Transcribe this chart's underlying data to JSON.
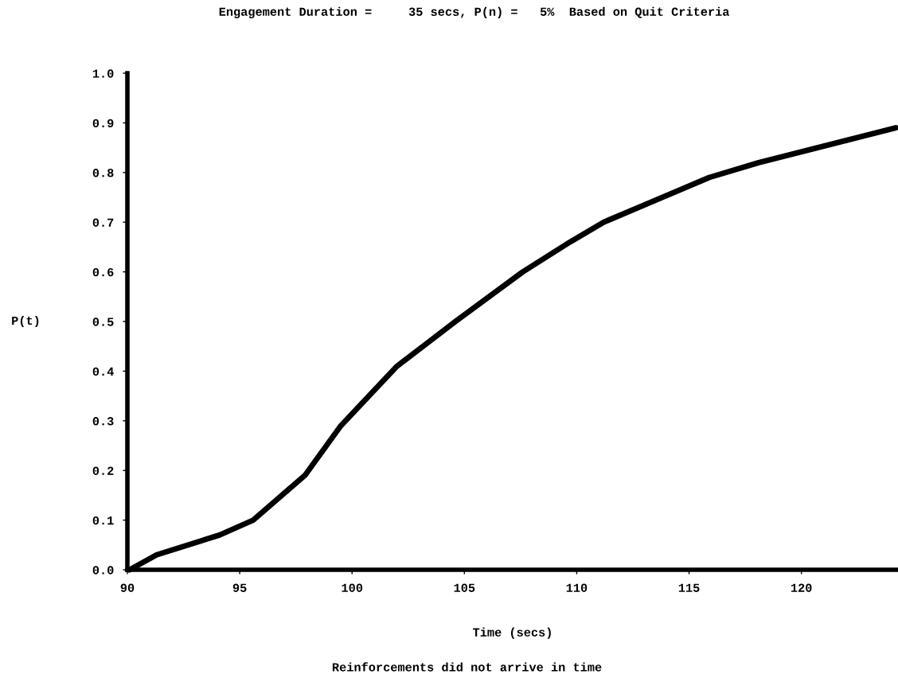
{
  "chart_data": {
    "type": "line",
    "title": "Engagement Duration =     35 secs, P(n) =   5%  Based on Quit Criteria",
    "xlabel": "Time (secs)",
    "ylabel": "P(t)",
    "annotations": [
      "Reinforcements did not arrive in time"
    ],
    "series": [
      {
        "color": "#000000",
        "x": [
          90.1,
          91.3,
          94.1,
          95.6,
          97.9,
          99.5,
          102.0,
          104.6,
          107.6,
          109.7,
          111.2,
          115.9,
          118.1,
          124.2
        ],
        "values": [
          0.0,
          0.03,
          0.07,
          0.1,
          0.19,
          0.29,
          0.41,
          0.5,
          0.6,
          0.66,
          0.7,
          0.79,
          0.82,
          0.89
        ]
      }
    ],
    "xlim": [
      90,
      124.3
    ],
    "ylim": [
      0,
      1
    ],
    "xticks": [
      90,
      95,
      100,
      105,
      110,
      115,
      120
    ],
    "yticks": [
      {
        "value": 0,
        "label": "0.0"
      },
      {
        "value": 0.1,
        "label": "0.1"
      },
      {
        "value": 0.2,
        "label": "0.2"
      },
      {
        "value": 0.3,
        "label": "0.3"
      },
      {
        "value": 0.4,
        "label": "0.4"
      },
      {
        "value": 0.5,
        "label": "0.5"
      },
      {
        "value": 0.6,
        "label": "0.6"
      },
      {
        "value": 0.7,
        "label": "0.7"
      },
      {
        "value": 0.8,
        "label": "0.8"
      },
      {
        "value": 0.9,
        "label": "0.9"
      },
      {
        "value": 1,
        "label": "1.0"
      }
    ],
    "grid": false,
    "legend": false,
    "marker": "none",
    "line_style": "solid"
  }
}
